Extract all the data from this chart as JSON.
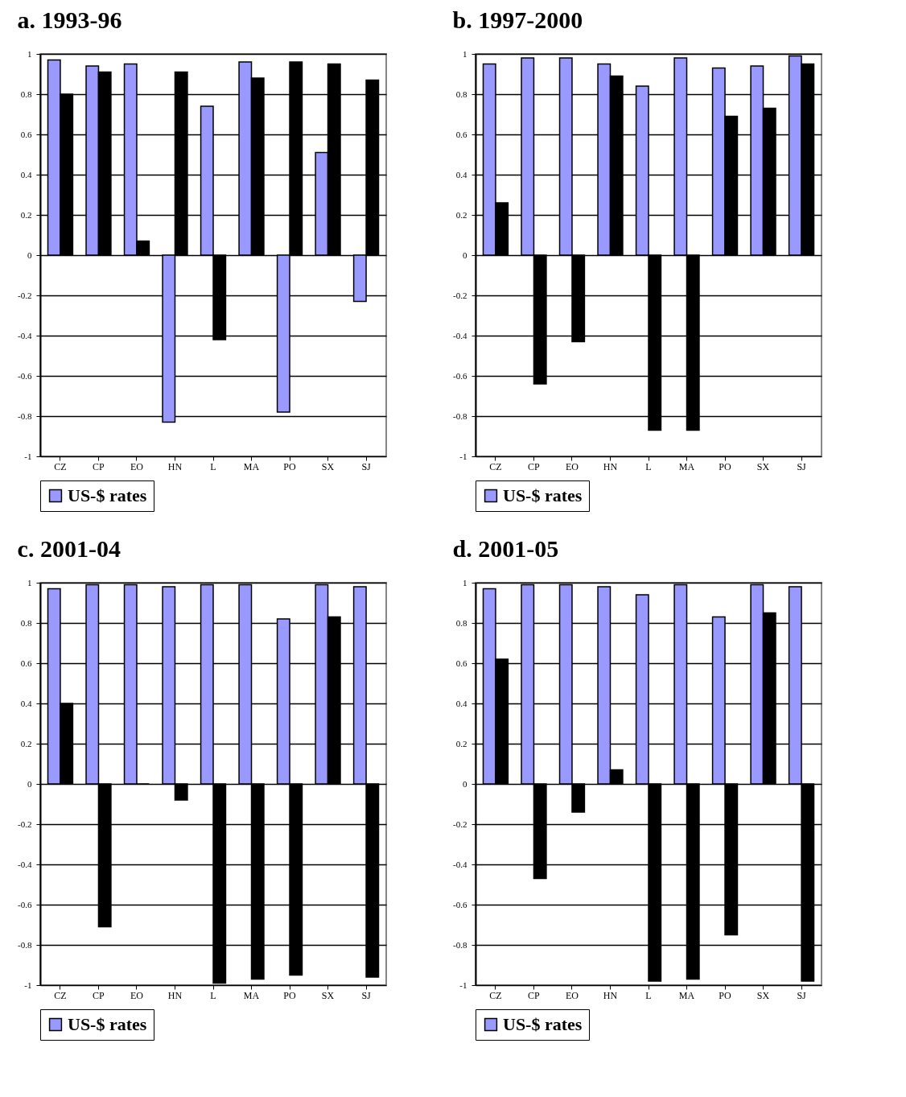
{
  "chart_data": [
    {
      "type": "bar",
      "title": "a. 1993-96",
      "categories": [
        "CZ",
        "CP",
        "EO",
        "HN",
        "L",
        "MA",
        "PO",
        "SX",
        "SJ"
      ],
      "ylim": [
        -1,
        1
      ],
      "yticks": [
        -1,
        -0.8,
        -0.6,
        -0.4,
        -0.2,
        0,
        0.2,
        0.4,
        0.6,
        0.8,
        1
      ],
      "grid": "y",
      "legend": "bottom",
      "series": [
        {
          "name": "US-$ rates",
          "color": "#9999ff",
          "values": [
            0.97,
            0.94,
            0.95,
            -0.83,
            0.74,
            0.96,
            -0.78,
            0.51,
            -0.23
          ]
        },
        {
          "color": "#000000",
          "values": [
            0.8,
            0.91,
            0.07,
            0.91,
            -0.42,
            0.88,
            0.96,
            0.95,
            0.87
          ]
        }
      ]
    },
    {
      "type": "bar",
      "title": "b. 1997-2000",
      "categories": [
        "CZ",
        "CP",
        "EO",
        "HN",
        "L",
        "MA",
        "PO",
        "SX",
        "SJ"
      ],
      "ylim": [
        -1,
        1
      ],
      "yticks": [
        -1,
        -0.8,
        -0.6,
        -0.4,
        -0.2,
        0,
        0.2,
        0.4,
        0.6,
        0.8,
        1
      ],
      "grid": "y",
      "legend": "bottom",
      "series": [
        {
          "name": "US-$ rates",
          "color": "#9999ff",
          "values": [
            0.95,
            0.98,
            0.98,
            0.95,
            0.84,
            0.98,
            0.93,
            0.94,
            0.99
          ]
        },
        {
          "color": "#000000",
          "values": [
            0.26,
            -0.64,
            -0.43,
            0.89,
            -0.87,
            -0.87,
            0.69,
            0.73,
            0.95
          ]
        }
      ]
    },
    {
      "type": "bar",
      "title": "c. 2001-04",
      "categories": [
        "CZ",
        "CP",
        "EO",
        "HN",
        "L",
        "MA",
        "PO",
        "SX",
        "SJ"
      ],
      "ylim": [
        -1,
        1
      ],
      "yticks": [
        -1,
        -0.8,
        -0.6,
        -0.4,
        -0.2,
        0,
        0.2,
        0.4,
        0.6,
        0.8,
        1
      ],
      "grid": "y",
      "legend": "bottom",
      "series": [
        {
          "name": "US-$ rates",
          "color": "#9999ff",
          "values": [
            0.97,
            0.99,
            0.99,
            0.98,
            0.99,
            0.99,
            0.82,
            0.99,
            0.98
          ]
        },
        {
          "color": "#000000",
          "values": [
            0.4,
            -0.71,
            0,
            -0.08,
            -0.99,
            -0.97,
            -0.95,
            0.83,
            -0.96
          ]
        }
      ]
    },
    {
      "type": "bar",
      "title": "d. 2001-05",
      "categories": [
        "CZ",
        "CP",
        "EO",
        "HN",
        "L",
        "MA",
        "PO",
        "SX",
        "SJ"
      ],
      "ylim": [
        -1,
        1
      ],
      "yticks": [
        -1,
        -0.8,
        -0.6,
        -0.4,
        -0.2,
        0,
        0.2,
        0.4,
        0.6,
        0.8,
        1
      ],
      "grid": "y",
      "legend": "bottom",
      "series": [
        {
          "name": "US-$ rates",
          "color": "#9999ff",
          "values": [
            0.97,
            0.99,
            0.99,
            0.98,
            0.94,
            0.99,
            0.83,
            0.99,
            0.98
          ]
        },
        {
          "color": "#000000",
          "values": [
            0.62,
            -0.47,
            -0.14,
            0.07,
            -0.98,
            -0.97,
            -0.75,
            0.85,
            -0.98
          ]
        }
      ]
    }
  ]
}
